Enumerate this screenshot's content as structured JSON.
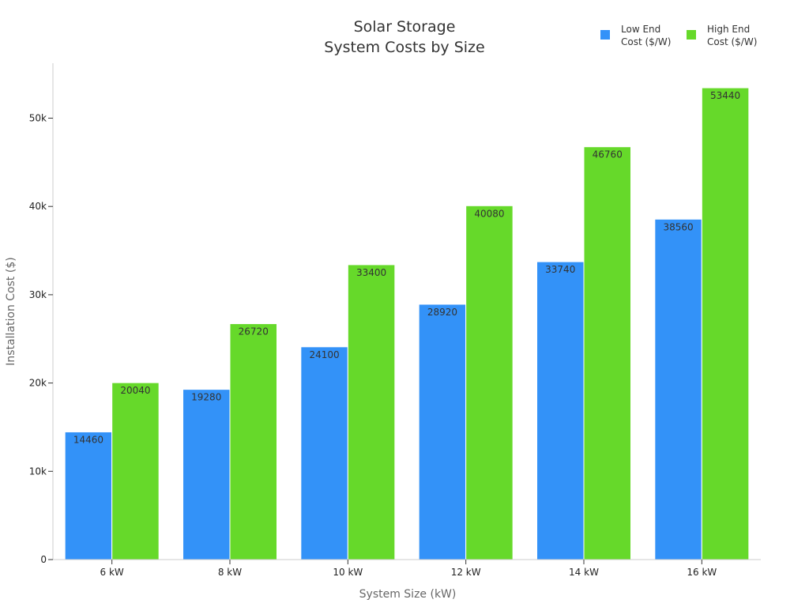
{
  "chart_data": {
    "type": "bar",
    "title_lines": [
      "Solar Storage",
      "System Costs by Size"
    ],
    "xlabel": "System Size (kW)",
    "ylabel": "Installation Cost ($)",
    "categories": [
      "6 kW",
      "8 kW",
      "10 kW",
      "12 kW",
      "14 kW",
      "16 kW"
    ],
    "ylim": [
      0,
      56000
    ],
    "yticks": [
      0,
      10000,
      20000,
      30000,
      40000,
      50000
    ],
    "ytick_labels": [
      "0",
      "10k",
      "20k",
      "30k",
      "40k",
      "50k"
    ],
    "grid": false,
    "legend_position": "top-right",
    "series": [
      {
        "name_lines": [
          "Low End",
          "Cost ($/W)"
        ],
        "color": "#3392f8",
        "values": [
          14460,
          19280,
          24100,
          28920,
          33740,
          38560
        ]
      },
      {
        "name_lines": [
          "High End",
          "Cost ($/W)"
        ],
        "color": "#66d92a",
        "values": [
          20040,
          26720,
          33400,
          40080,
          46760,
          53440
        ]
      }
    ]
  }
}
